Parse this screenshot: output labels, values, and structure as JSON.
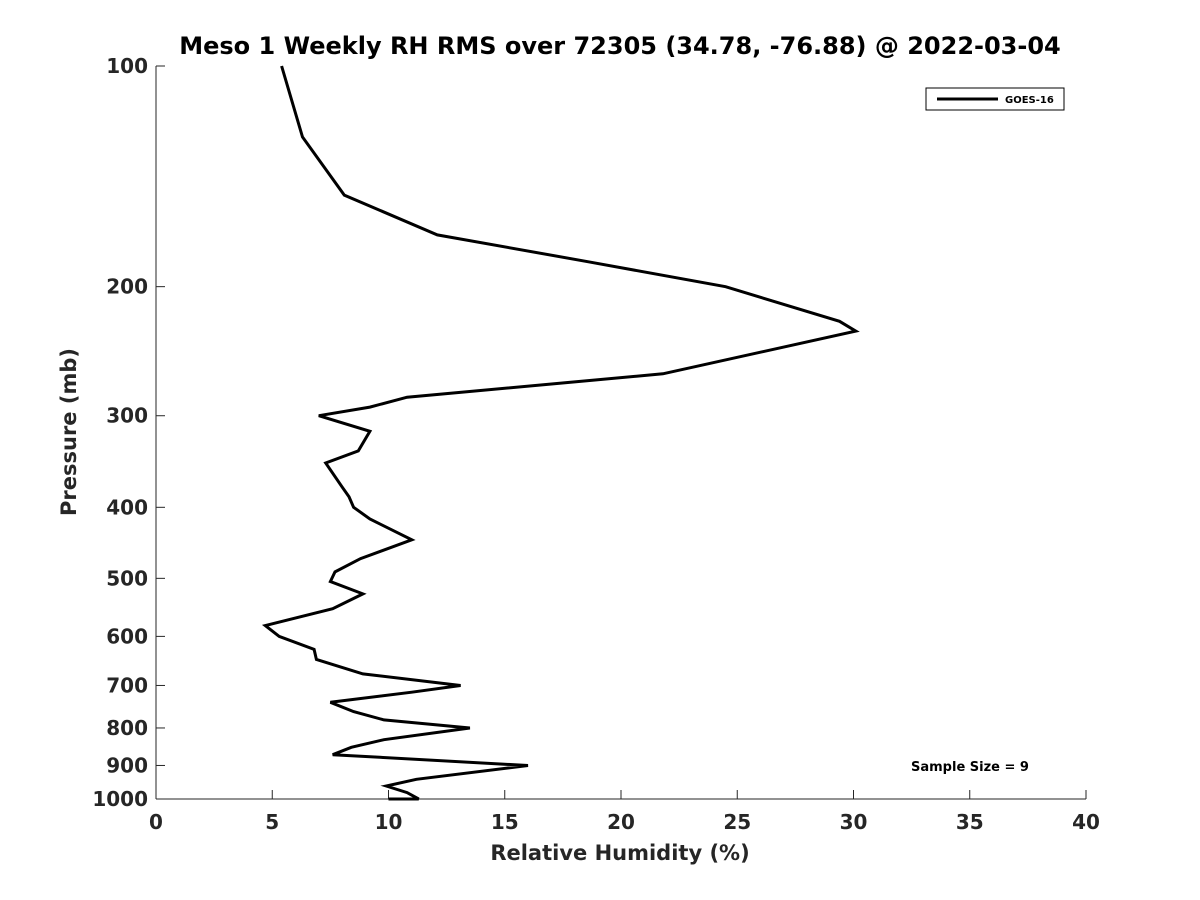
{
  "chart_data": {
    "type": "line",
    "title": "Meso 1 Weekly RH RMS over 72305 (34.78, -76.88) @ 2022-03-04",
    "xlabel": "Relative Humidity (%)",
    "ylabel": "Pressure (mb)",
    "xlim": [
      0,
      40
    ],
    "ylim": [
      100,
      1000
    ],
    "yscale": "log",
    "yreversed": true,
    "grid": false,
    "legend_position": "top-right",
    "x_ticks": [
      "0",
      "5",
      "10",
      "15",
      "20",
      "25",
      "30",
      "35",
      "40"
    ],
    "y_ticks": [
      "100",
      "200",
      "300",
      "400",
      "500",
      "600",
      "700",
      "800",
      "900",
      "1000"
    ],
    "annotation": "Sample Size = 9",
    "series": [
      {
        "name": "GOES-16",
        "color": "#000000",
        "x": [
          5.4,
          6.3,
          8.1,
          12.1,
          18.6,
          24.5,
          29.4,
          30.1,
          21.8,
          10.8,
          9.2,
          7.0,
          9.2,
          8.7,
          7.3,
          8.0,
          8.3,
          8.5,
          9.2,
          11.0,
          8.8,
          7.7,
          7.5,
          8.9,
          7.6,
          4.7,
          5.3,
          6.8,
          6.9,
          8.9,
          13.1,
          11.0,
          7.5,
          8.5,
          9.8,
          13.5,
          9.8,
          8.4,
          7.6,
          16.0,
          11.2,
          9.9,
          10.8,
          11.3,
          10.0
        ],
        "y": [
          100,
          125,
          150,
          170,
          185,
          200,
          223,
          230,
          263,
          283,
          292,
          300,
          315,
          335,
          348,
          375,
          387,
          400,
          415,
          443,
          470,
          490,
          505,
          525,
          550,
          580,
          600,
          625,
          645,
          675,
          700,
          715,
          738,
          760,
          780,
          800,
          830,
          850,
          870,
          900,
          940,
          960,
          980,
          1000,
          1000
        ]
      }
    ]
  }
}
